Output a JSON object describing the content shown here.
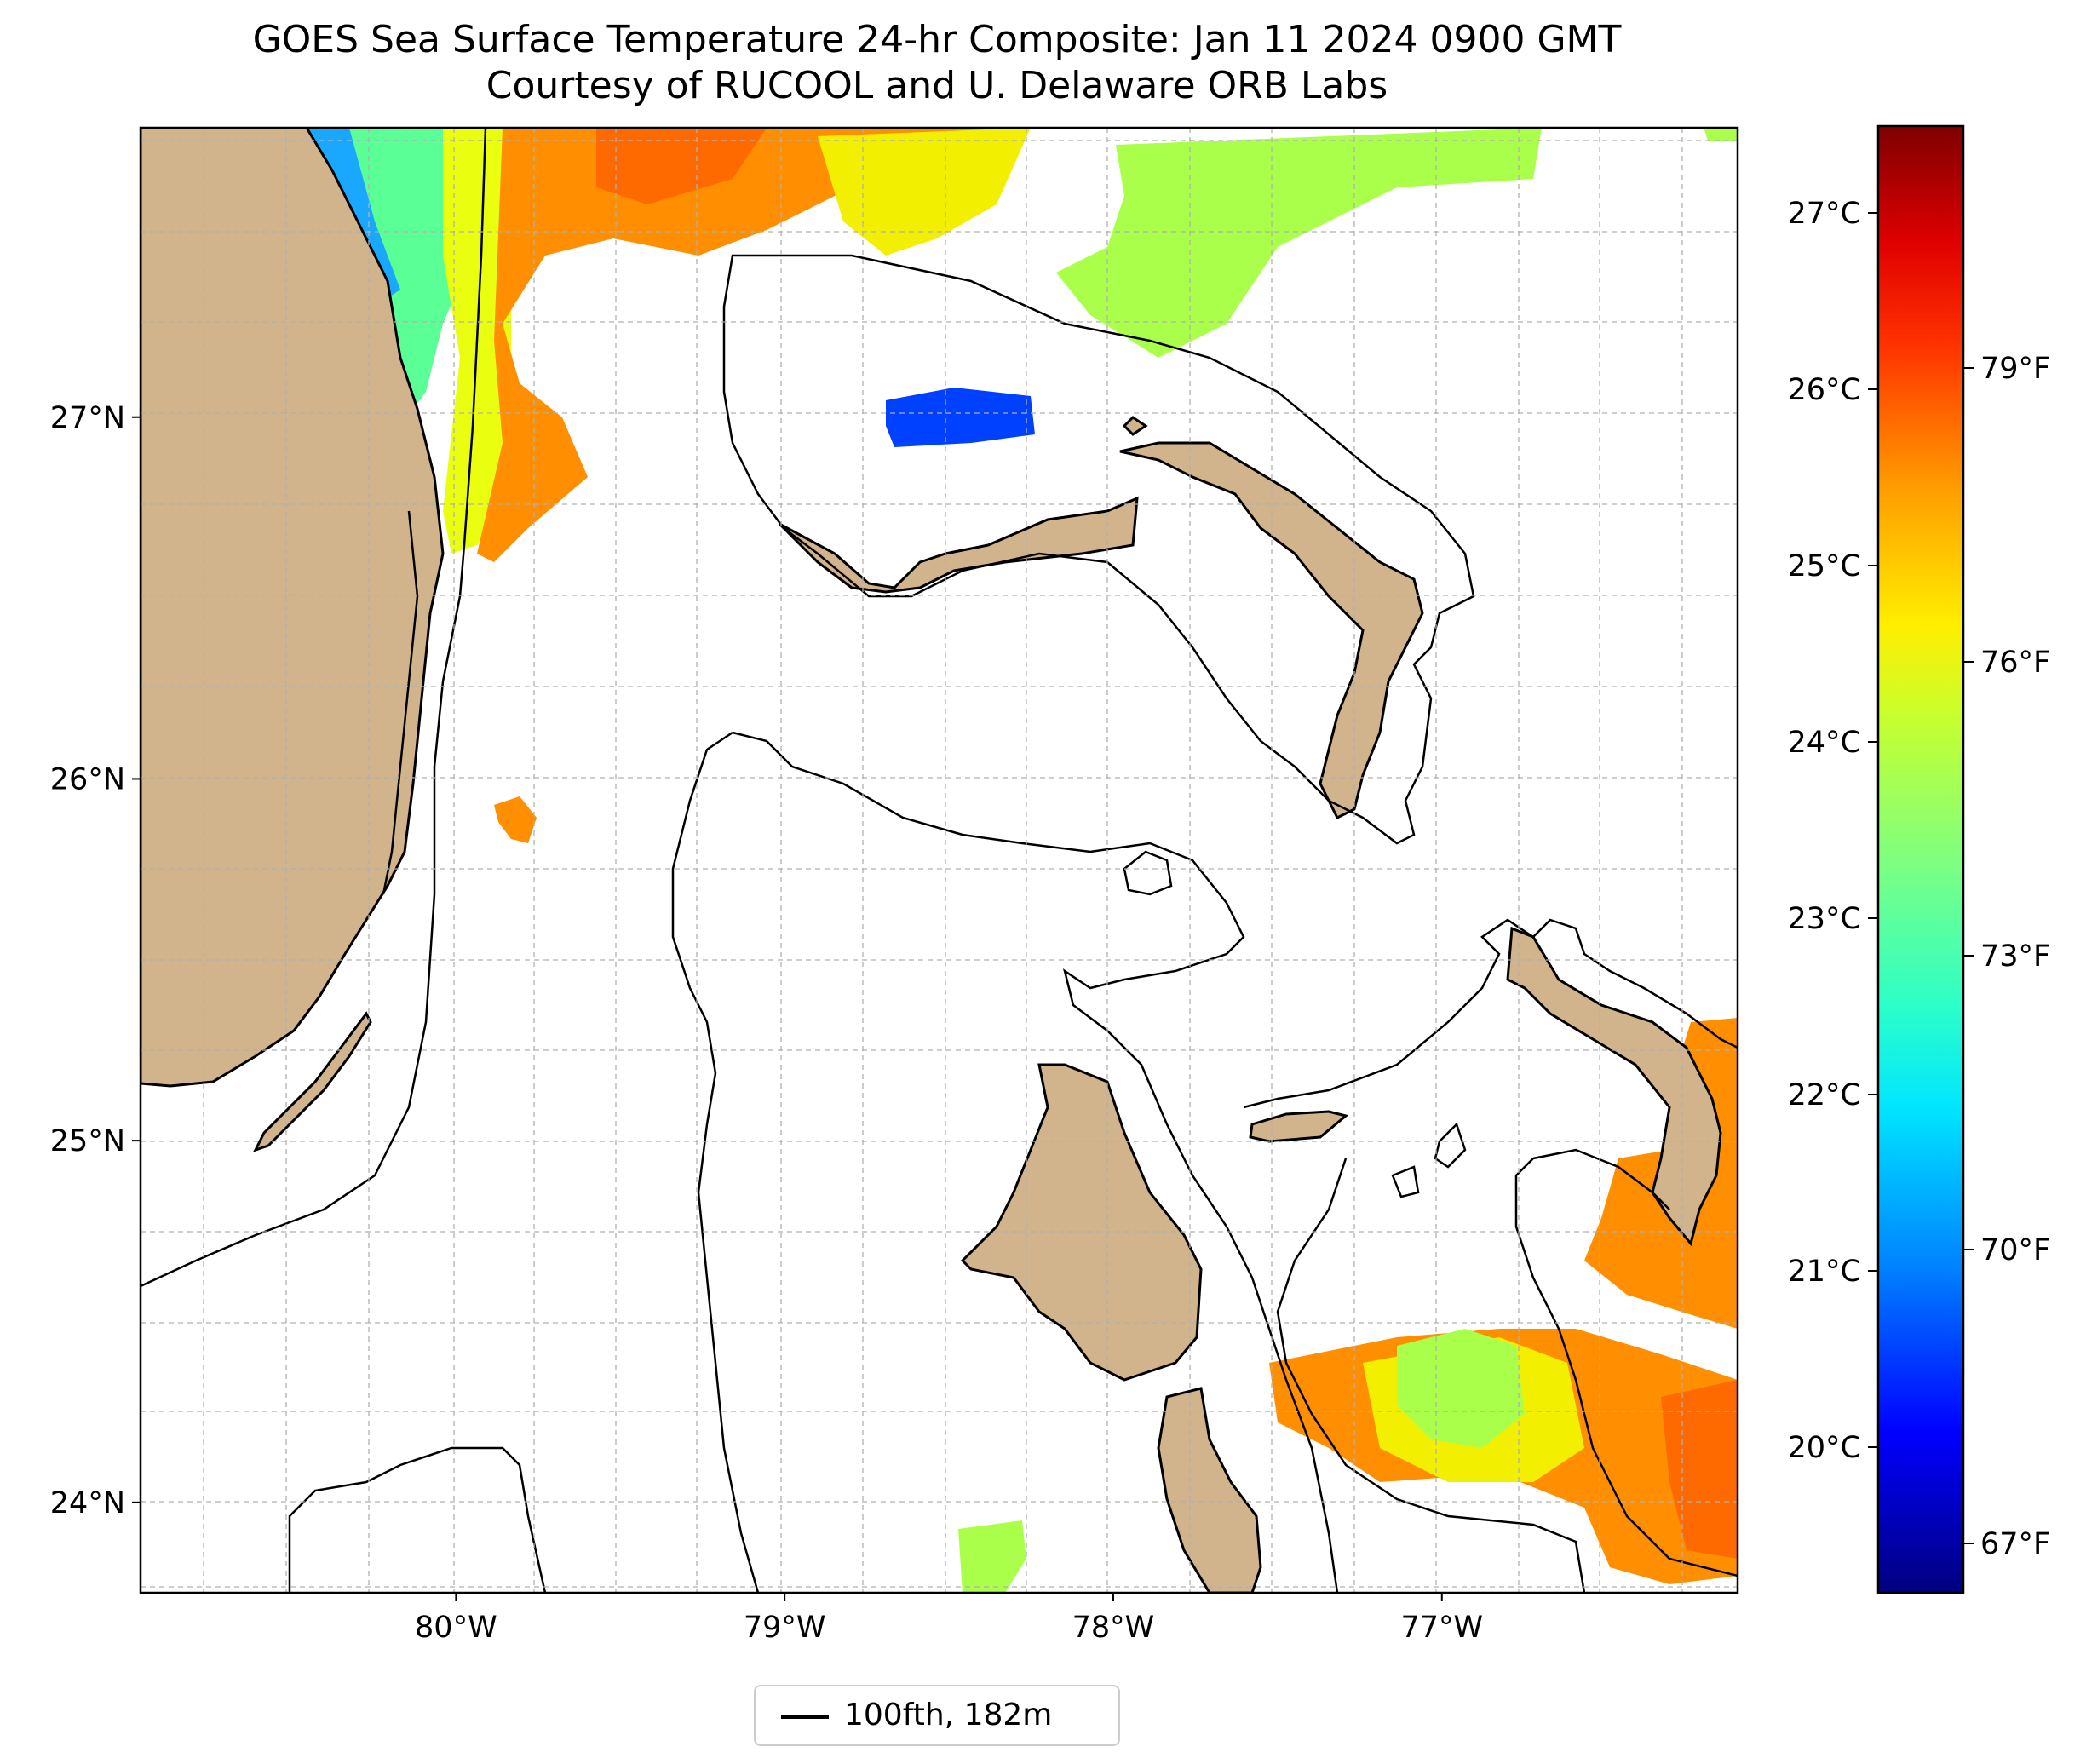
{
  "title": {
    "line1": "GOES Sea Surface Temperature 24-hr Composite: Jan 11 2024 0900 GMT",
    "line2": "Courtesy of RUCOOL and U. Delaware ORB Labs"
  },
  "map": {
    "lon_range": [
      -80.96,
      -76.1
    ],
    "lat_range": [
      23.75,
      27.8
    ],
    "lat_ticks": [
      {
        "value": 27,
        "label": "27°N"
      },
      {
        "value": 26,
        "label": "26°N"
      },
      {
        "value": 25,
        "label": "25°N"
      },
      {
        "value": 24,
        "label": "24°N"
      }
    ],
    "lon_ticks": [
      {
        "value": -80,
        "label": "80°W"
      },
      {
        "value": -79,
        "label": "79°W"
      },
      {
        "value": -78,
        "label": "78°W"
      },
      {
        "value": -77,
        "label": "77°W"
      }
    ],
    "colors": {
      "land": "#d2b48c",
      "coast": "#000000",
      "grid": "#b0b0b0"
    }
  },
  "colorbar": {
    "celsius_ticks": [
      "27°C",
      "26°C",
      "25°C",
      "24°C",
      "23°C",
      "22°C",
      "21°C",
      "20°C"
    ],
    "fahrenheit_ticks": [
      "79°F",
      "76°F",
      "73°F",
      "70°F",
      "67°F"
    ],
    "colors": [
      "#00007f",
      "#0000ff",
      "#007fff",
      "#00e5ff",
      "#2cffc9",
      "#7fff7f",
      "#c9ff2c",
      "#ffe500",
      "#ff9900",
      "#ff3300",
      "#e50000",
      "#7f0000"
    ]
  },
  "legend": {
    "label": "100fth, 182m"
  }
}
